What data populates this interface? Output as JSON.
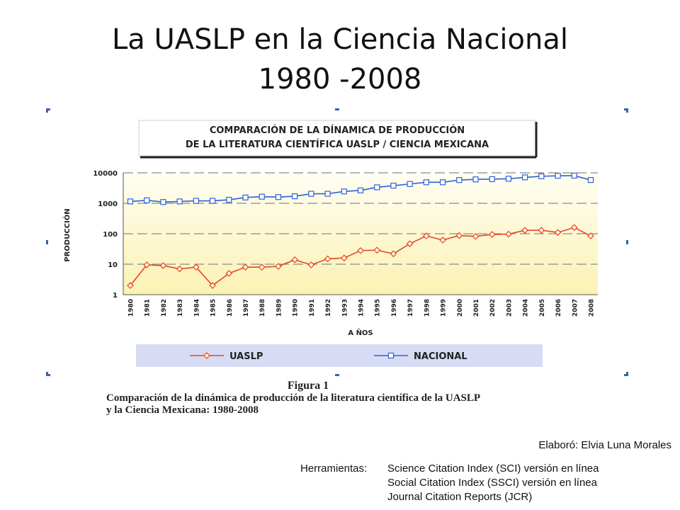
{
  "slide": {
    "title_line1": "La UASLP en la Ciencia Nacional",
    "title_line2": "1980 -2008"
  },
  "figure": {
    "caption_title": "Figura 1",
    "caption_line1": "Comparación de la dinámica de producción de la literatura científica de la UASLP",
    "caption_line2": "y la Ciencia Mexicana: 1980-2008"
  },
  "footer": {
    "credit": "Elaboró: Elvia Luna Morales",
    "tools_label": "Herramientas:",
    "tools": [
      "Science Citation Index (SCI) versión en línea",
      "Social Citation Index (SSCI) versión en línea",
      "Journal Citation Reports (JCR)"
    ]
  },
  "colors": {
    "uaslp": "#e8442a",
    "nacional": "#2f62d6",
    "plot_bg_top": "#fffef2",
    "plot_bg_bottom": "#fbf2b4",
    "legend_bg": "#d7dcf4"
  },
  "chart_data": {
    "type": "line",
    "title_line1": "COMPARACIÓN DE LA DÍNAMICA DE PRODUCCIÓN",
    "title_line2": "DE LA LITERATURA CIENTÍFICA UASLP / CIENCIA MEXICANA",
    "xlabel": "A ÑOS",
    "ylabel": "PRODUCCIÓN",
    "y_scale": "log",
    "ylim": [
      1,
      10000
    ],
    "yticks": [
      "1",
      "10",
      "100",
      "1000",
      "10000"
    ],
    "grid": true,
    "legend_position": "bottom",
    "categories": [
      "1980",
      "1981",
      "1982",
      "1983",
      "1984",
      "1985",
      "1986",
      "1987",
      "1988",
      "1989",
      "1990",
      "1991",
      "1992",
      "1993",
      "1994",
      "1995",
      "1996",
      "1997",
      "1998",
      "1999",
      "2000",
      "2001",
      "2002",
      "2003",
      "2004",
      "2005",
      "2006",
      "2007",
      "2008"
    ],
    "series": [
      {
        "name": "UASLP",
        "marker": "diamond",
        "values": [
          2,
          9.5,
          9,
          7,
          8,
          2,
          5,
          8,
          8,
          8.5,
          14,
          9.5,
          15,
          16,
          28,
          29,
          22,
          47,
          85,
          62,
          87,
          82,
          95,
          97,
          130,
          130,
          110,
          160,
          85
        ]
      },
      {
        "name": "NACIONAL",
        "marker": "square",
        "values": [
          1150,
          1250,
          1100,
          1150,
          1200,
          1200,
          1300,
          1550,
          1650,
          1600,
          1700,
          2050,
          2050,
          2450,
          2650,
          3350,
          3800,
          4300,
          4900,
          4900,
          5800,
          6100,
          6200,
          6400,
          7100,
          7700,
          8000,
          8100,
          5800
        ]
      }
    ]
  }
}
